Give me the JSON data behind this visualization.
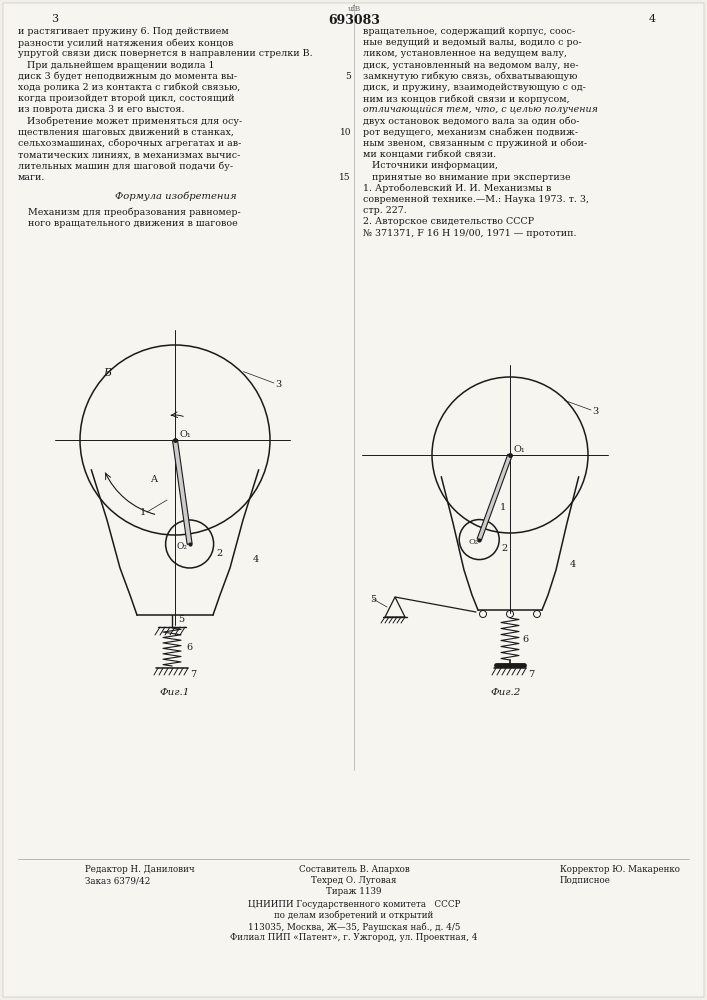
{
  "bg_color": "#f2efe8",
  "patent_number": "693083",
  "page_left": "3",
  "page_right": "4",
  "fig1_caption": "Фиг.1",
  "fig2_caption": "Фиг.2",
  "left_col_lines": [
    "и растягивает пружину 6. Под действием",
    "разности усилий натяжения обеих концов",
    "упругой связи диск повернется в направлении стрелки В.",
    "   При дальнейшем вращении водила 1",
    "диск 3 будет неподвижным до момента вы-",
    "хода ролика 2 из контакта с гибкой связью,",
    "когда произойдет второй цикл, состоящий",
    "из поврота диска 3 и его выстоя.",
    "   Изобретение может применяться для осу-",
    "ществления шаговых движений в станках,",
    "сельхозмашинах, сборочных агрегатах и ав-",
    "томатических линиях, в механизмах вычис-",
    "лительных машин для шаговой подачи бу-",
    "маги."
  ],
  "formula_header": "Формула изобретения",
  "formula_lines": [
    "Механизм для преобразования равномер-",
    "ного вращательного движения в шаговое"
  ],
  "right_col_lines": [
    "вращательное, содержащий корпус, соос-",
    "ные ведущий и ведомый валы, водило с ро-",
    "ликом, установленное на ведущем валу,",
    "диск, установленный на ведомом валу, не-",
    "замкнутую гибкую связь, обхватывающую",
    "диск, и пружину, взаимодействующую с од-",
    "ним из концов гибкой связи и корпусом,",
    "отличающийся тем, что, с целью получения",
    "двух остановок ведомого вала за один обо-",
    "рот ведущего, механизм снабжен подвиж-",
    "ным звеном, связанным с пружиной и обои-",
    "ми концами гибкой связи.",
    "   Источники информации,",
    "   принятые во внимание при экспертизе",
    "1. Артоболевский И. И. Механизмы в",
    "современной технике.—М.: Наука 1973. т. 3,",
    "стр. 227.",
    "2. Авторское свидетельство СССР",
    "№ 371371, F 16 H 19/00, 1971 — прототип."
  ],
  "line_numbers": [
    "5",
    "10",
    "15"
  ],
  "line_number_rows": [
    4,
    9,
    13
  ]
}
